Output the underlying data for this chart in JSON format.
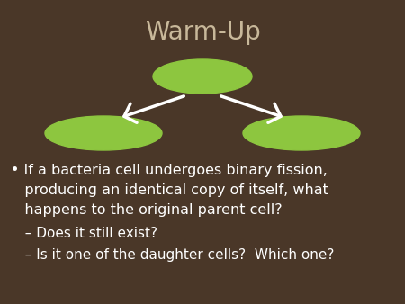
{
  "background_color": "#4a3728",
  "title": "Warm-Up",
  "title_color": "#c8b89a",
  "title_fontsize": 20,
  "ellipse_color": "#8dc63f",
  "arrow_color": "white",
  "line1": "• If a bacteria cell undergoes binary fission,",
  "line2": "   producing an identical copy of itself, what",
  "line3": "   happens to the original parent cell?",
  "sub1": "  – Does it still exist?",
  "sub2": "  – Is it one of the daughter cells?  Which one?",
  "text_color": "white",
  "text_fontsize": 11.5,
  "sub_fontsize": 11.0
}
